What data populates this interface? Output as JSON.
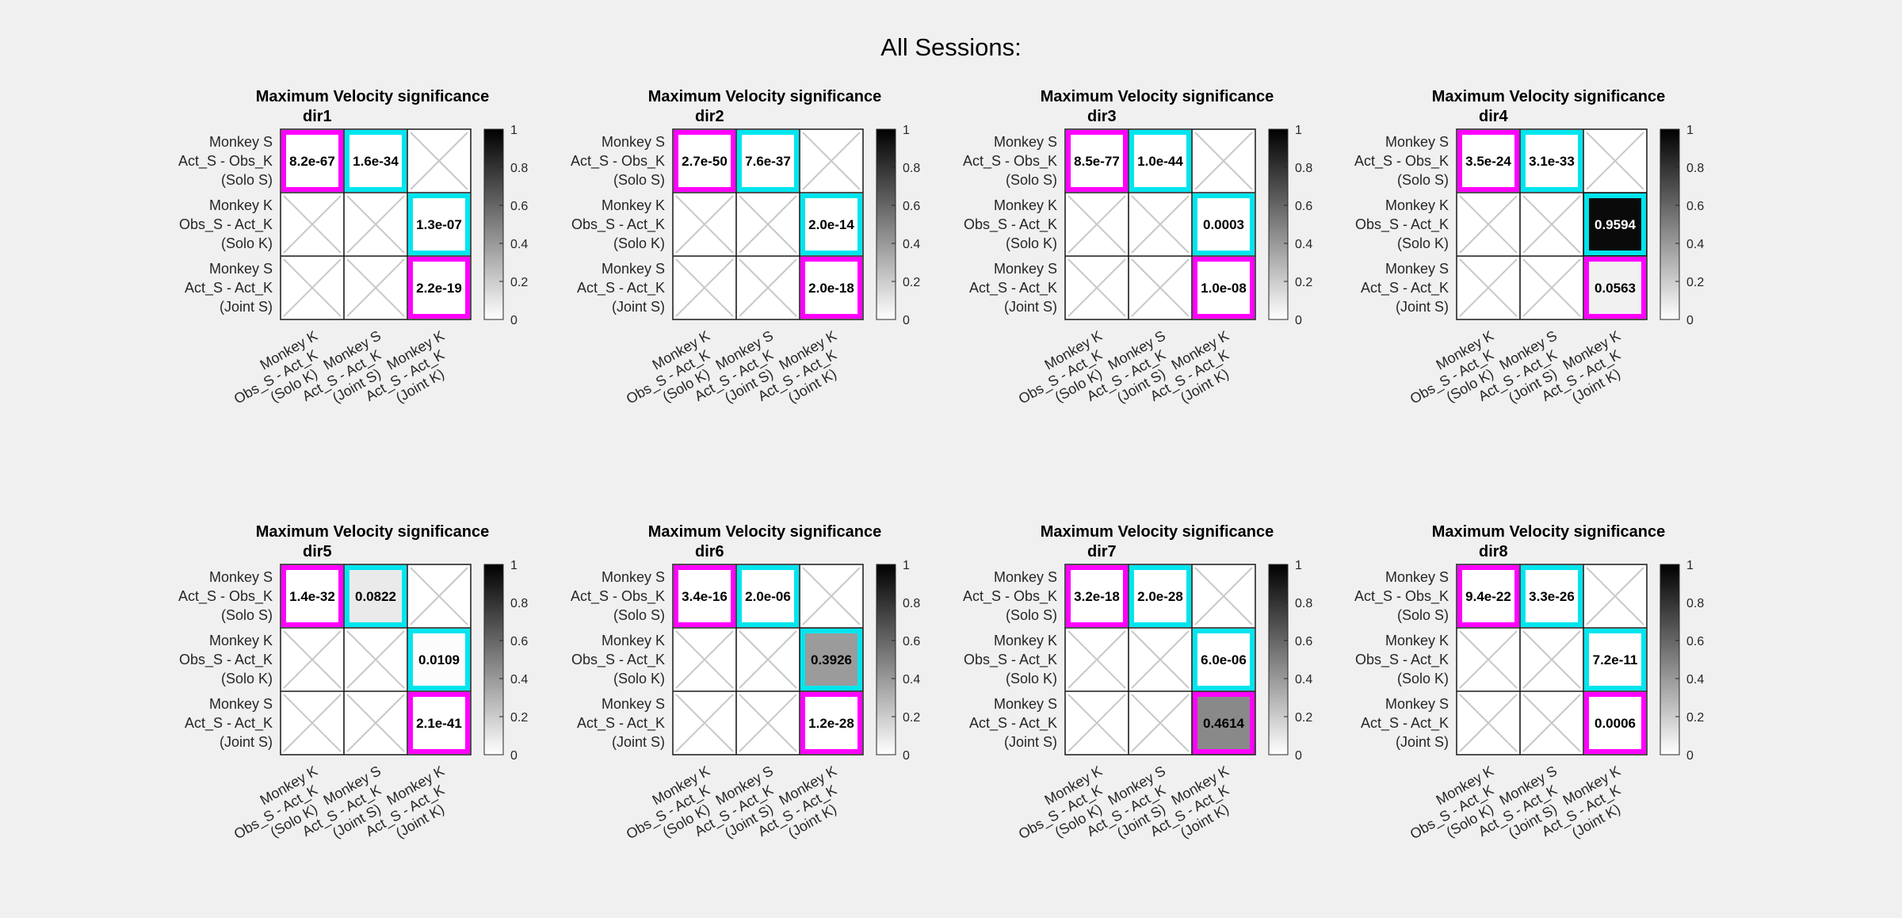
{
  "figure": {
    "suptitle": "All Sessions:"
  },
  "chart_data": {
    "type": "heatmap",
    "shared": {
      "row_labels": [
        [
          "Monkey S",
          "Act_S - Obs_K",
          "(Solo S)"
        ],
        [
          "Monkey K",
          "Obs_S - Act_K",
          "(Solo K)"
        ],
        [
          "Monkey S",
          "Act_S - Act_K",
          "(Joint S)"
        ]
      ],
      "col_labels": [
        [
          "Monkey K",
          "Obs_S - Act_K",
          "(Solo K)"
        ],
        [
          "Monkey S",
          "Act_S - Act_K",
          "(Joint S)"
        ],
        [
          "Monkey K",
          "Act_S - Act_K",
          "(Joint K)"
        ]
      ],
      "colorbar": {
        "range": [
          0,
          1
        ],
        "ticks": [
          "0",
          "0.2",
          "0.4",
          "0.6",
          "0.8",
          "1"
        ],
        "colormap": "gray-reversed"
      },
      "empty_cells": [
        [
          0,
          2
        ],
        [
          1,
          0
        ],
        [
          1,
          1
        ],
        [
          2,
          0
        ],
        [
          2,
          1
        ]
      ],
      "highlight_colors": {
        "magenta": "#ff00ff",
        "cyan": "#00e5ee"
      },
      "cell_highlights": {
        "0,0": "magenta",
        "0,1": "cyan",
        "1,2": "cyan",
        "2,2": "magenta"
      }
    },
    "panels": [
      {
        "title": "Maximum Velocity significance",
        "subtitle": "dir1",
        "values": [
          [
            8.2e-67,
            1.6e-34,
            null
          ],
          [
            null,
            null,
            1.3e-07
          ],
          [
            null,
            null,
            2.2e-19
          ]
        ],
        "labels": [
          [
            "8.2e-67",
            "1.6e-34",
            ""
          ],
          [
            "",
            "",
            "1.3e-07"
          ],
          [
            "",
            "",
            "2.2e-19"
          ]
        ]
      },
      {
        "title": "Maximum Velocity significance",
        "subtitle": "dir2",
        "values": [
          [
            2.7e-50,
            7.6e-37,
            null
          ],
          [
            null,
            null,
            2e-14
          ],
          [
            null,
            null,
            2e-18
          ]
        ],
        "labels": [
          [
            "2.7e-50",
            "7.6e-37",
            ""
          ],
          [
            "",
            "",
            "2.0e-14"
          ],
          [
            "",
            "",
            "2.0e-18"
          ]
        ]
      },
      {
        "title": "Maximum Velocity significance",
        "subtitle": "dir3",
        "values": [
          [
            8.5e-77,
            1e-44,
            null
          ],
          [
            null,
            null,
            0.0003
          ],
          [
            null,
            null,
            1e-08
          ]
        ],
        "labels": [
          [
            "8.5e-77",
            "1.0e-44",
            ""
          ],
          [
            "",
            "",
            "0.0003"
          ],
          [
            "",
            "",
            "1.0e-08"
          ]
        ]
      },
      {
        "title": "Maximum Velocity significance",
        "subtitle": "dir4",
        "values": [
          [
            3.5e-24,
            3.1e-33,
            null
          ],
          [
            null,
            null,
            0.9594
          ],
          [
            null,
            null,
            0.0563
          ]
        ],
        "labels": [
          [
            "3.5e-24",
            "3.1e-33",
            ""
          ],
          [
            "",
            "",
            "0.9594"
          ],
          [
            "",
            "",
            "0.0563"
          ]
        ]
      },
      {
        "title": "Maximum Velocity significance",
        "subtitle": "dir5",
        "values": [
          [
            1.4e-32,
            0.0822,
            null
          ],
          [
            null,
            null,
            0.0109
          ],
          [
            null,
            null,
            2.1e-41
          ]
        ],
        "labels": [
          [
            "1.4e-32",
            "0.0822",
            ""
          ],
          [
            "",
            "",
            "0.0109"
          ],
          [
            "",
            "",
            "2.1e-41"
          ]
        ]
      },
      {
        "title": "Maximum Velocity significance",
        "subtitle": "dir6",
        "values": [
          [
            3.4e-16,
            2e-06,
            null
          ],
          [
            null,
            null,
            0.3926
          ],
          [
            null,
            null,
            1.2e-28
          ]
        ],
        "labels": [
          [
            "3.4e-16",
            "2.0e-06",
            ""
          ],
          [
            "",
            "",
            "0.3926"
          ],
          [
            "",
            "",
            "1.2e-28"
          ]
        ]
      },
      {
        "title": "Maximum Velocity significance",
        "subtitle": "dir7",
        "values": [
          [
            3.2e-18,
            2e-28,
            null
          ],
          [
            null,
            null,
            6e-06
          ],
          [
            null,
            null,
            0.4614
          ]
        ],
        "labels": [
          [
            "3.2e-18",
            "2.0e-28",
            ""
          ],
          [
            "",
            "",
            "6.0e-06"
          ],
          [
            "",
            "",
            "0.4614"
          ]
        ]
      },
      {
        "title": "Maximum Velocity significance",
        "subtitle": "dir8",
        "values": [
          [
            9.4e-22,
            3.3e-26,
            null
          ],
          [
            null,
            null,
            7.2e-11
          ],
          [
            null,
            null,
            0.0006
          ]
        ],
        "labels": [
          [
            "9.4e-22",
            "3.3e-26",
            ""
          ],
          [
            "",
            "",
            "7.2e-11"
          ],
          [
            "",
            "",
            "0.0006"
          ]
        ]
      }
    ]
  }
}
